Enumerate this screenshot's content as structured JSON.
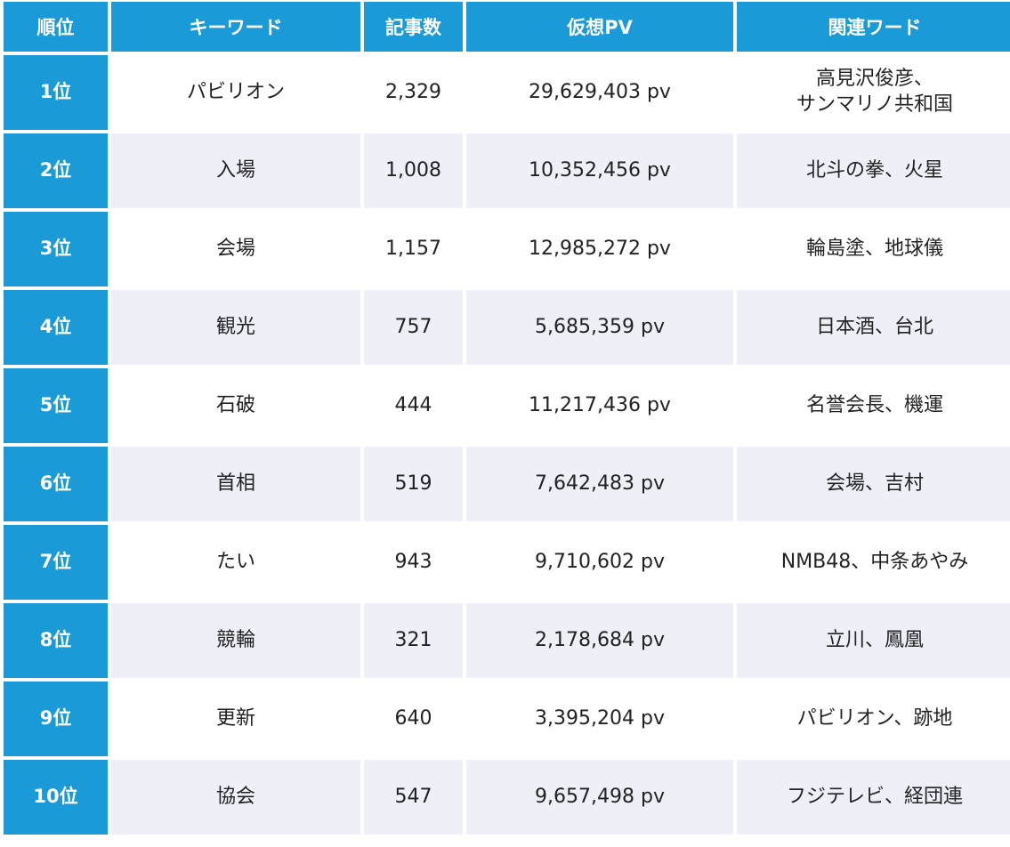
{
  "headers": {
    "rank": "順位",
    "keyword": "キーワード",
    "article_count": "記事数",
    "virtual_pv": "仮想PV",
    "related_words": "関連ワード"
  },
  "colors": {
    "header_bg": "#1a9ad6",
    "header_text": "#ffffff",
    "stripe_bg": "#eff0f7",
    "body_text": "#222222"
  },
  "rows": [
    {
      "rank": "1位",
      "keyword": "パビリオン",
      "count": "2,329",
      "pv": "29,629,403 pv",
      "related": "高見沢俊彦、\nサンマリノ共和国"
    },
    {
      "rank": "2位",
      "keyword": "入場",
      "count": "1,008",
      "pv": "10,352,456 pv",
      "related": "北斗の拳、火星"
    },
    {
      "rank": "3位",
      "keyword": "会場",
      "count": "1,157",
      "pv": "12,985,272 pv",
      "related": "輪島塗、地球儀"
    },
    {
      "rank": "4位",
      "keyword": "観光",
      "count": "757",
      "pv": "5,685,359 pv",
      "related": "日本酒、台北"
    },
    {
      "rank": "5位",
      "keyword": "石破",
      "count": "444",
      "pv": "11,217,436 pv",
      "related": "名誉会長、機運"
    },
    {
      "rank": "6位",
      "keyword": "首相",
      "count": "519",
      "pv": "7,642,483 pv",
      "related": "会場、吉村"
    },
    {
      "rank": "7位",
      "keyword": "たい",
      "count": "943",
      "pv": "9,710,602 pv",
      "related": "NMB48、中条あやみ"
    },
    {
      "rank": "8位",
      "keyword": "競輪",
      "count": "321",
      "pv": "2,178,684 pv",
      "related": "立川、鳳凰"
    },
    {
      "rank": "9位",
      "keyword": "更新",
      "count": "640",
      "pv": "3,395,204 pv",
      "related": "パビリオン、跡地"
    },
    {
      "rank": "10位",
      "keyword": "協会",
      "count": "547",
      "pv": "9,657,498 pv",
      "related": "フジテレビ、経団連"
    }
  ]
}
